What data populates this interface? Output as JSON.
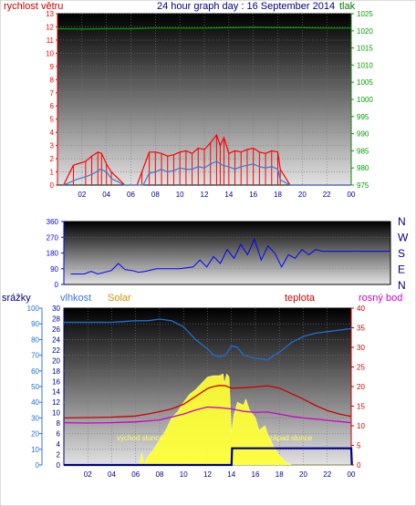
{
  "header": {
    "left_label": "rychlost větru",
    "title": "24 hour graph day : 16 September 2014",
    "right_label": "tlak"
  },
  "wind_dir_labels": [
    "N",
    "W",
    "S",
    "E",
    "N"
  ],
  "bottom_labels": {
    "precip": "srážky",
    "humidity": "vlhkost",
    "solar": "Solar",
    "temperature": "teplota",
    "dewpoint": "rosný bod"
  },
  "annotations": {
    "sunrise": "východ slunce",
    "sunset": "západ slunce"
  },
  "colors": {
    "wind_gust": "#ff0000",
    "wind_avg": "#3a78d8",
    "pressure": "#00a000",
    "direction": "#0000ff",
    "humidity": "#1e6fd8",
    "temperature": "#cc0000",
    "dewpoint": "#cc00cc",
    "solar": "#ffff33",
    "precip": "#00008b",
    "header_red": "#cc0000",
    "header_navy": "#000080",
    "header_green": "#008000",
    "solar_label": "#d89000"
  },
  "chart_data": [
    {
      "type": "line",
      "x_ticks": [
        "02",
        "04",
        "06",
        "08",
        "10",
        "12",
        "14",
        "16",
        "18",
        "20",
        "22",
        "00"
      ],
      "y_left_ticks": [
        "0",
        "1",
        "2",
        "3",
        "4",
        "5",
        "6",
        "7",
        "8",
        "9",
        "10",
        "11",
        "12",
        "13"
      ],
      "y_left_range": [
        0,
        13
      ],
      "y_right_ticks": [
        "975",
        "980",
        "985",
        "990",
        "995",
        "1000",
        "1005",
        "1010",
        "1015",
        "1020",
        "1025"
      ],
      "y_right_range": [
        975,
        1025
      ],
      "series": [
        {
          "key": "gust",
          "x": [
            0.5,
            1.3,
            2.3,
            2.8,
            3.3,
            3.6,
            4.0,
            4.4,
            5.5,
            6.5,
            6.9,
            7.5,
            8.0,
            8.5,
            9.0,
            9.5,
            10.0,
            10.5,
            11.0,
            11.5,
            12.0,
            12.5,
            13.0,
            13.3,
            13.6,
            14.0,
            14.5,
            15.0,
            15.5,
            16.0,
            16.5,
            17.0,
            17.5,
            18.0,
            18.2,
            19.0,
            20.0,
            21.0,
            22.0,
            23.0,
            24.0
          ],
          "values": [
            0,
            1.5,
            1.8,
            2.2,
            2.5,
            2.4,
            1.6,
            1.0,
            0,
            0,
            1.0,
            2.5,
            2.5,
            2.4,
            2.2,
            2.3,
            2.5,
            2.6,
            2.4,
            2.8,
            2.7,
            3.2,
            3.8,
            3.0,
            3.6,
            2.4,
            2.6,
            2.5,
            2.7,
            2.8,
            2.5,
            2.4,
            2.6,
            2.5,
            1.2,
            0,
            0,
            0,
            0,
            0,
            0
          ]
        },
        {
          "key": "avg",
          "x": [
            0.5,
            1.5,
            2.5,
            3.0,
            3.5,
            4.0,
            4.4,
            5.5,
            7.0,
            7.5,
            8.0,
            8.5,
            9.0,
            9.5,
            10.0,
            10.5,
            11.0,
            11.5,
            12.0,
            12.5,
            13.0,
            13.5,
            14.0,
            14.5,
            15.0,
            15.5,
            16.0,
            16.5,
            17.0,
            17.5,
            18.0,
            18.2,
            19.0,
            24.0
          ],
          "values": [
            0,
            0.4,
            0.7,
            0.9,
            1.2,
            1.0,
            0.5,
            0,
            0,
            0.9,
            1.0,
            1.2,
            1.0,
            1.1,
            1.3,
            1.2,
            1.2,
            1.4,
            1.3,
            1.6,
            1.8,
            1.5,
            1.4,
            1.2,
            1.4,
            1.5,
            1.6,
            1.4,
            1.3,
            1.4,
            1.2,
            0.4,
            0,
            0
          ]
        },
        {
          "key": "pressure",
          "x": [
            0,
            2,
            4,
            6,
            8,
            10,
            12,
            14,
            16,
            18,
            20,
            22,
            24
          ],
          "values": [
            1020.6,
            1020.5,
            1020.6,
            1020.6,
            1020.8,
            1020.8,
            1020.8,
            1020.9,
            1021.0,
            1020.9,
            1020.9,
            1020.8,
            1020.8
          ]
        }
      ]
    },
    {
      "type": "line",
      "y_ticks": [
        "0",
        "90",
        "180",
        "270",
        "360"
      ],
      "y_range": [
        0,
        360
      ],
      "series": [
        {
          "key": "direction",
          "x": [
            0.5,
            1.5,
            2.0,
            2.5,
            3.5,
            4.0,
            4.5,
            5.0,
            5.5,
            6.0,
            6.8,
            7.5,
            8.5,
            9.5,
            10.0,
            10.5,
            11.0,
            11.5,
            12.0,
            12.5,
            13.0,
            13.5,
            14.0,
            14.5,
            15.0,
            15.5,
            16.0,
            16.5,
            17.0,
            17.5,
            18.0,
            18.5,
            19.0,
            20.0,
            22.0,
            24.0
          ],
          "values": [
            60,
            60,
            75,
            60,
            80,
            120,
            85,
            80,
            70,
            75,
            90,
            90,
            90,
            100,
            140,
            100,
            160,
            120,
            200,
            150,
            230,
            170,
            260,
            140,
            220,
            180,
            100,
            170,
            150,
            200,
            170,
            200,
            190,
            190,
            190,
            190
          ]
        }
      ]
    },
    {
      "type": "line",
      "y_left_ticks": [
        "0",
        "10",
        "20",
        "30",
        "40",
        "50",
        "60",
        "70",
        "80",
        "90",
        "100"
      ],
      "y_left_range": [
        0,
        100
      ],
      "y_inner_ticks": [
        "0",
        "2",
        "4",
        "6",
        "8",
        "10",
        "12",
        "14",
        "16",
        "18",
        "20",
        "22",
        "24",
        "26",
        "28",
        "30"
      ],
      "y_inner_range": [
        0,
        30
      ],
      "y_right_ticks": [
        "0",
        "5",
        "10",
        "15",
        "20",
        "25",
        "30",
        "35",
        "40"
      ],
      "y_right_range": [
        0,
        40
      ],
      "series": [
        {
          "key": "humidity",
          "x": [
            0,
            2,
            4,
            6,
            7,
            8,
            9,
            10,
            11,
            12,
            12.5,
            13,
            13.5,
            14,
            14.5,
            15,
            16,
            17,
            18,
            19,
            20,
            21,
            22,
            23,
            24
          ],
          "values": [
            91,
            91,
            91,
            92,
            92,
            93,
            92,
            88,
            80,
            74,
            70,
            69,
            70,
            76,
            75,
            70,
            68,
            67,
            72,
            78,
            82,
            84,
            85,
            86,
            87
          ]
        },
        {
          "key": "temperature",
          "x": [
            0,
            2,
            4,
            6,
            7,
            8,
            9,
            10,
            11,
            12,
            12.5,
            13,
            13.5,
            14,
            15,
            16,
            17,
            18,
            19,
            20,
            21,
            22,
            23,
            24
          ],
          "values": [
            12.0,
            12.1,
            12.2,
            12.5,
            13,
            13.6,
            14.3,
            15.5,
            17.5,
            19.5,
            20,
            20.3,
            20.2,
            19.6,
            19.7,
            19.9,
            20.2,
            19.6,
            18.2,
            16.8,
            15.2,
            13.9,
            13.0,
            12.4
          ]
        },
        {
          "key": "dewpoint",
          "x": [
            0,
            2,
            4,
            6,
            8,
            10,
            11,
            12,
            13,
            14,
            15,
            16,
            17,
            18,
            19,
            20,
            22,
            24
          ],
          "values": [
            10.8,
            10.7,
            10.8,
            11.0,
            11.5,
            13.0,
            14.0,
            14.8,
            14.6,
            14.3,
            13.7,
            13.4,
            13.5,
            13.0,
            12.4,
            12.0,
            11.4,
            10.8
          ]
        },
        {
          "key": "solar",
          "x": [
            0,
            6.3,
            6.5,
            6.7,
            7,
            7.5,
            8,
            8.5,
            9,
            9.5,
            10,
            10.5,
            11,
            11.5,
            12,
            12.5,
            13,
            13.3,
            13.4,
            13.6,
            13.8,
            14,
            14.2,
            14.5,
            15,
            15.2,
            15.5,
            16,
            16.3,
            16.8,
            17,
            17.5,
            18,
            18.5,
            19,
            24
          ],
          "values": [
            0,
            0,
            8,
            0,
            5,
            10,
            16,
            22,
            30,
            34,
            40,
            45,
            48,
            52,
            56,
            57,
            57,
            58,
            52,
            58,
            56,
            20,
            32,
            40,
            38,
            42,
            35,
            30,
            22,
            25,
            20,
            12,
            6,
            2,
            0,
            0
          ]
        },
        {
          "key": "precip",
          "x": [
            0,
            14,
            14.05,
            24,
            24.05
          ],
          "values": [
            0,
            0,
            3.2,
            3.2,
            0
          ]
        }
      ]
    }
  ]
}
